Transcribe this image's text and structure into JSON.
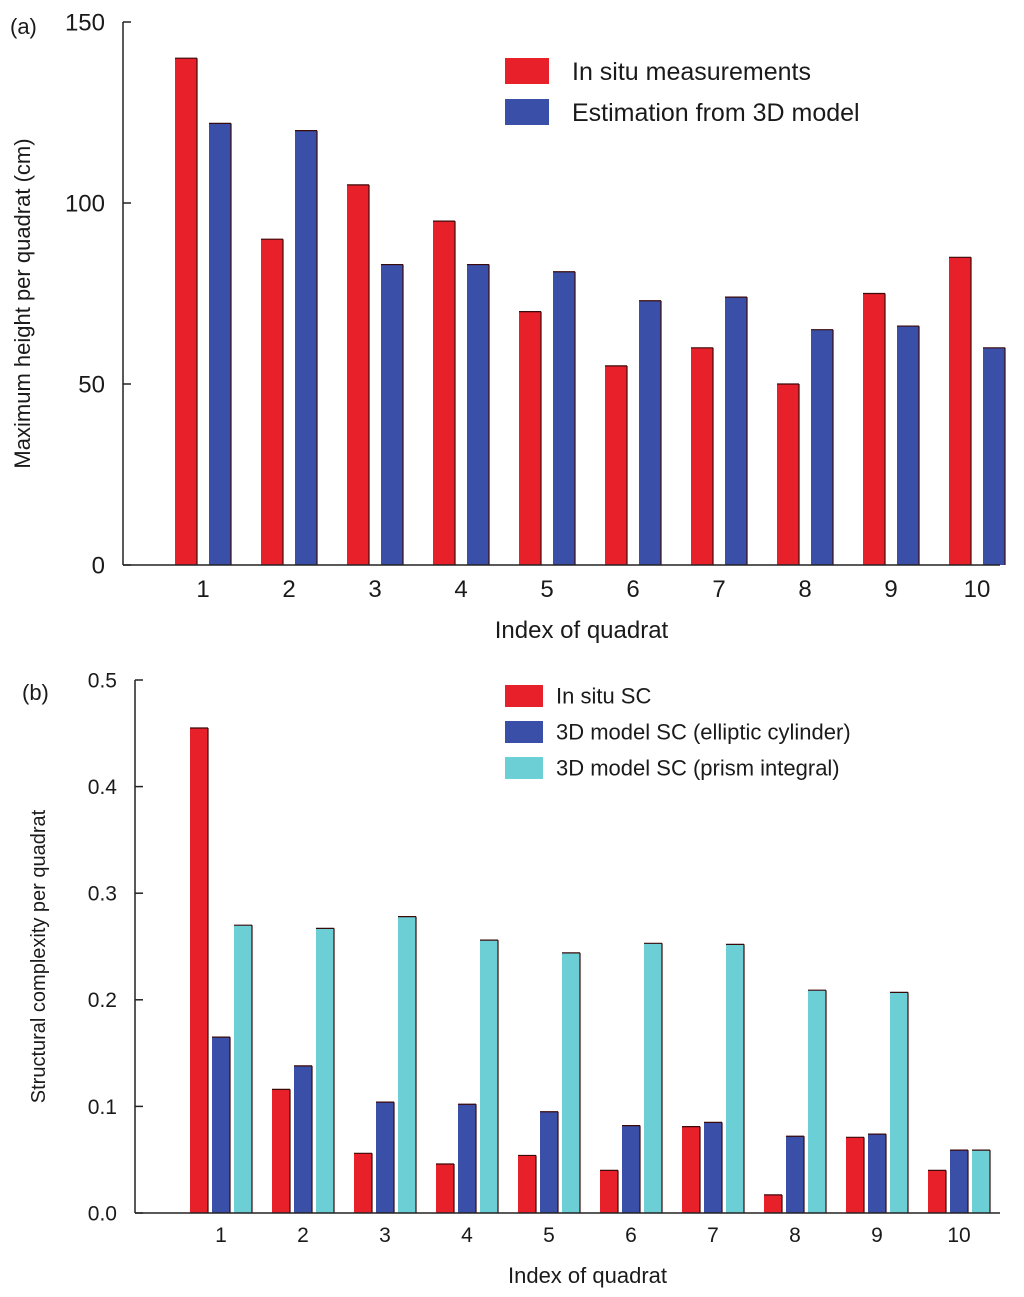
{
  "chart_data": [
    {
      "type": "bar",
      "panel_label": "(a)",
      "title": "",
      "xlabel": "Index of quadrat",
      "ylabel": "Maximum height per quadrat (cm)",
      "categories": [
        "1",
        "2",
        "3",
        "4",
        "5",
        "6",
        "7",
        "8",
        "9",
        "10"
      ],
      "ylim": [
        0,
        150
      ],
      "yticks": [
        "0",
        "50",
        "100",
        "150"
      ],
      "yticks_values": [
        0,
        50,
        100,
        150
      ],
      "grid": false,
      "legend_position": "top-right",
      "series": [
        {
          "name": "In situ measurements",
          "color": "#e8202a",
          "values": [
            140,
            90,
            105,
            95,
            70,
            55,
            60,
            50,
            75,
            85
          ]
        },
        {
          "name": "Estimation from 3D model",
          "color": "#3a4fa8",
          "values": [
            122,
            120,
            83,
            83,
            81,
            73,
            74,
            65,
            66,
            60
          ]
        }
      ]
    },
    {
      "type": "bar",
      "panel_label": "(b)",
      "title": "",
      "xlabel": "Index of quadrat",
      "ylabel": "Structural complexity per quadrat",
      "categories": [
        "1",
        "2",
        "3",
        "4",
        "5",
        "6",
        "7",
        "8",
        "9",
        "10"
      ],
      "ylim": [
        0,
        0.5
      ],
      "yticks": [
        "0.0",
        "0.1",
        "0.2",
        "0.3",
        "0.4",
        "0.5"
      ],
      "yticks_values": [
        0,
        0.1,
        0.2,
        0.3,
        0.4,
        0.5
      ],
      "grid": false,
      "legend_position": "top-right",
      "series": [
        {
          "name": "In situ  SC",
          "color": "#e8202a",
          "values": [
            0.455,
            0.116,
            0.056,
            0.046,
            0.054,
            0.04,
            0.081,
            0.017,
            0.071,
            0.04
          ]
        },
        {
          "name": "3D model SC (elliptic cylinder)",
          "color": "#3a4fa8",
          "values": [
            0.165,
            0.138,
            0.104,
            0.102,
            0.095,
            0.082,
            0.085,
            0.072,
            0.074,
            0.059
          ]
        },
        {
          "name": "3D model SC (prism integral)",
          "color": "#6ccfd6",
          "values": [
            0.27,
            0.267,
            0.278,
            0.256,
            0.244,
            0.253,
            0.252,
            0.209,
            0.207,
            0.059
          ]
        }
      ]
    }
  ]
}
